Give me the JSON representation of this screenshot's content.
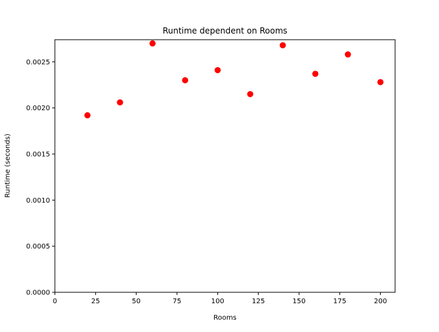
{
  "chart_data": {
    "type": "scatter",
    "title": "Runtime dependent on Rooms",
    "xlabel": "Rooms",
    "ylabel": "Runtime (seconds)",
    "xlim": [
      0,
      209
    ],
    "ylim": [
      0,
      0.00274
    ],
    "xticks": [
      0,
      25,
      50,
      75,
      100,
      125,
      150,
      175,
      200
    ],
    "yticks": [
      0.0,
      0.0005,
      0.001,
      0.0015,
      0.002,
      0.0025
    ],
    "xtick_labels": [
      "0",
      "25",
      "50",
      "75",
      "100",
      "125",
      "150",
      "175",
      "200"
    ],
    "ytick_labels": [
      "0.0000",
      "0.0005",
      "0.0010",
      "0.0015",
      "0.0020",
      "0.0025"
    ],
    "grid": false,
    "marker_color": "#ff0000",
    "x": [
      20,
      40,
      60,
      80,
      100,
      120,
      140,
      160,
      180,
      200
    ],
    "y": [
      0.00192,
      0.00206,
      0.0027,
      0.0023,
      0.00241,
      0.00215,
      0.00268,
      0.00237,
      0.00258,
      0.00228
    ]
  }
}
